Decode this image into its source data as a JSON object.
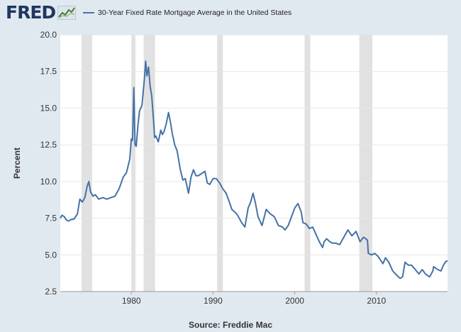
{
  "header": {
    "logo_text": "FRED",
    "legend_label": "30-Year Fixed Rate Mortgage Average in the United States"
  },
  "footer": {
    "source": "Source: Freddie Mac"
  },
  "colors": {
    "background": "#e1e9f0",
    "plot_background": "#ffffff",
    "series": "#4572a7",
    "recession": "#e1e1e1"
  },
  "chart_data": {
    "type": "line",
    "title": "",
    "xlabel": "",
    "ylabel": "Percent",
    "xlim": [
      1971.3,
      2018.7
    ],
    "ylim": [
      2.5,
      20.0
    ],
    "x_ticks": [
      "1980",
      "1990",
      "2000",
      "2010"
    ],
    "x_tick_values": [
      1980,
      1990,
      2000,
      2010
    ],
    "y_ticks": [
      "2.5",
      "5.0",
      "7.5",
      "10.0",
      "12.5",
      "15.0",
      "17.5",
      "20.0"
    ],
    "y_tick_values": [
      2.5,
      5.0,
      7.5,
      10.0,
      12.5,
      15.0,
      17.5,
      20.0
    ],
    "grid": true,
    "legend_position": "top-left",
    "recessions": [
      [
        1973.9,
        1975.2
      ],
      [
        1980.0,
        1980.5
      ],
      [
        1981.5,
        1982.9
      ],
      [
        1990.5,
        1991.2
      ],
      [
        2001.2,
        2001.9
      ],
      [
        2007.9,
        2009.5
      ]
    ],
    "series": [
      {
        "name": "30-Year Fixed Rate Mortgage Average in the United States",
        "x": [
          1971.3,
          1971.5,
          1971.8,
          1972.0,
          1972.3,
          1972.6,
          1973.0,
          1973.4,
          1973.7,
          1974.0,
          1974.3,
          1974.6,
          1974.8,
          1975.0,
          1975.3,
          1975.6,
          1976.0,
          1976.5,
          1977.0,
          1977.5,
          1978.0,
          1978.5,
          1979.0,
          1979.4,
          1979.8,
          1980.0,
          1980.15,
          1980.3,
          1980.45,
          1980.6,
          1980.8,
          1981.0,
          1981.3,
          1981.6,
          1981.75,
          1981.9,
          1982.1,
          1982.3,
          1982.5,
          1982.7,
          1982.85,
          1983.0,
          1983.3,
          1983.6,
          1983.8,
          1984.0,
          1984.3,
          1984.55,
          1984.8,
          1985.0,
          1985.3,
          1985.6,
          1986.0,
          1986.3,
          1986.6,
          1987.0,
          1987.3,
          1987.6,
          1987.9,
          1988.2,
          1988.5,
          1989.0,
          1989.3,
          1989.6,
          1990.0,
          1990.4,
          1990.8,
          1991.2,
          1991.6,
          1992.0,
          1992.3,
          1992.7,
          1993.0,
          1993.5,
          1993.9,
          1994.3,
          1994.6,
          1994.9,
          1995.2,
          1995.5,
          1996.0,
          1996.5,
          1997.0,
          1997.5,
          1998.0,
          1998.5,
          1998.8,
          1999.2,
          1999.6,
          2000.0,
          2000.4,
          2000.8,
          2001.0,
          2001.4,
          2001.8,
          2002.2,
          2002.6,
          2003.0,
          2003.4,
          2003.6,
          2003.9,
          2004.3,
          2004.6,
          2005.0,
          2005.5,
          2006.0,
          2006.5,
          2007.0,
          2007.5,
          2008.0,
          2008.4,
          2008.7,
          2008.9,
          2009.0,
          2009.4,
          2009.8,
          2010.2,
          2010.8,
          2011.1,
          2011.5,
          2012.0,
          2012.5,
          2012.9,
          2013.2,
          2013.5,
          2013.9,
          2014.3,
          2014.9,
          2015.2,
          2015.6,
          2016.0,
          2016.5,
          2016.9,
          2017.0,
          2017.5,
          2017.9,
          2018.2,
          2018.5,
          2018.7
        ],
        "values": [
          7.5,
          7.7,
          7.6,
          7.4,
          7.3,
          7.4,
          7.45,
          7.8,
          8.8,
          8.6,
          8.9,
          9.7,
          10.0,
          9.3,
          9.0,
          9.1,
          8.8,
          8.9,
          8.8,
          8.9,
          9.0,
          9.5,
          10.3,
          10.6,
          11.5,
          12.9,
          12.8,
          16.4,
          12.5,
          12.4,
          13.8,
          14.8,
          15.2,
          17.0,
          18.2,
          17.2,
          17.8,
          16.5,
          15.8,
          14.3,
          13.0,
          13.1,
          12.7,
          13.5,
          13.2,
          13.4,
          14.0,
          14.7,
          14.0,
          13.3,
          12.5,
          12.1,
          10.8,
          10.1,
          10.2,
          9.2,
          10.3,
          10.8,
          10.4,
          10.4,
          10.5,
          10.7,
          9.9,
          9.8,
          10.2,
          10.2,
          9.9,
          9.5,
          9.2,
          8.6,
          8.1,
          7.9,
          7.7,
          7.2,
          6.9,
          8.2,
          8.6,
          9.2,
          8.5,
          7.6,
          7.0,
          8.1,
          7.8,
          7.6,
          7.0,
          6.9,
          6.7,
          7.0,
          7.6,
          8.2,
          8.5,
          7.9,
          7.2,
          7.1,
          6.8,
          6.9,
          6.4,
          5.9,
          5.5,
          5.9,
          6.1,
          5.9,
          5.8,
          5.8,
          5.7,
          6.2,
          6.7,
          6.3,
          6.6,
          5.9,
          6.2,
          6.1,
          6.0,
          5.1,
          5.0,
          5.1,
          4.9,
          4.4,
          4.8,
          4.5,
          3.9,
          3.6,
          3.4,
          3.5,
          4.5,
          4.3,
          4.3,
          3.9,
          3.7,
          4.0,
          3.7,
          3.5,
          3.9,
          4.2,
          4.0,
          3.9,
          4.3,
          4.55,
          4.6
        ]
      }
    ]
  }
}
